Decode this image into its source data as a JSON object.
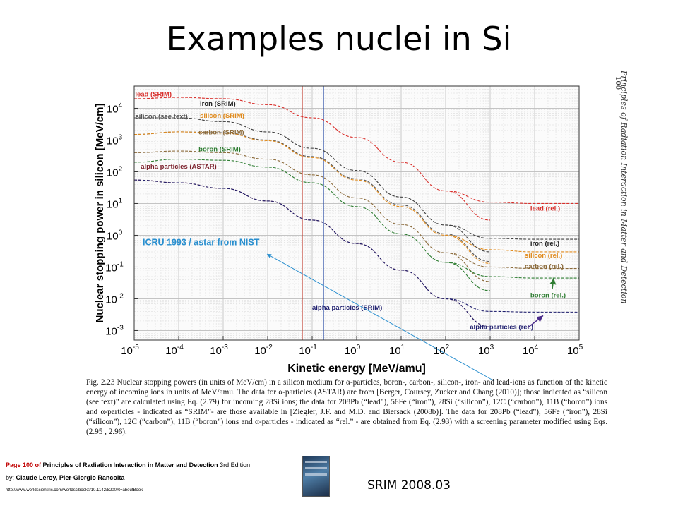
{
  "slide": {
    "title": "Examples nuclei in Si",
    "version": "SRIM 2008.03",
    "page_number": "100",
    "running_head": "Principles of Radiation Interaction in Matter and Detection"
  },
  "caption": "Fig. 2.23   Nuclear stopping powers (in units of MeV/cm) in a silicon medium for α-particles, boron-, carbon-, silicon-, iron- and lead-ions as function of the kinetic energy of incoming ions in units of MeV/amu. The data for α-particles (ASTAR) are from [Berger, Coursey, Zucker and Chang (2010)]; those indicated as “silicon (see text)” are calculated using Eq. (2.79) for incoming 28Si ions; the data for 208Pb (“lead”), 56Fe (“iron”), 28Si (“silicon”), 12C (“carbon”), 11B (“boron”) ions and α-particles - indicated as “SRIM”- are those available in [Ziegler, J.F. and M.D. and Biersack (2008b)]. The data for 208Pb (“lead”), 56Fe (“iron”), 28Si (“silicon”), 12C (“carbon”), 11B (“boron”) ions and α-particles - indicated as “rel.” - are obtained from Eq. (2.93) with a screening parameter modified using Eqs. (2.95 , 2.96).",
  "reference": {
    "page_label": "Page 100 of",
    "book_title": "Principles of Radiation Interaction in Matter and Detection",
    "edition": "3rd Edition",
    "by_label": "by:",
    "authors": "Claude Leroy, Pier-Giorgio Rancoita",
    "url": "http://www.worldscientific.com/worldscibooks/10.1142/8200#t=aboutBook"
  },
  "chart_data": {
    "type": "line",
    "xlabel": "Kinetic energy  [MeV/amu]",
    "ylabel": "Nuclear stopping power in silicon  [MeV/cm]",
    "xscale": "log",
    "yscale": "log",
    "xlim": [
      1e-05,
      100000
    ],
    "ylim": [
      0.0005,
      50000
    ],
    "x_ticks": [
      {
        "v": 1e-05,
        "b": "10",
        "e": "-5"
      },
      {
        "v": 0.0001,
        "b": "10",
        "e": "-4"
      },
      {
        "v": 0.001,
        "b": "10",
        "e": "-3"
      },
      {
        "v": 0.01,
        "b": "10",
        "e": "-2"
      },
      {
        "v": 0.1,
        "b": "10",
        "e": "-1"
      },
      {
        "v": 1,
        "b": "10",
        "e": "0"
      },
      {
        "v": 10,
        "b": "10",
        "e": "1"
      },
      {
        "v": 100,
        "b": "10",
        "e": "2"
      },
      {
        "v": 1000,
        "b": "10",
        "e": "3"
      },
      {
        "v": 10000,
        "b": "10",
        "e": "4"
      },
      {
        "v": 100000,
        "b": "10",
        "e": "5"
      }
    ],
    "y_ticks": [
      {
        "v": 0.001,
        "b": "10",
        "e": "-3"
      },
      {
        "v": 0.01,
        "b": "10",
        "e": "-2"
      },
      {
        "v": 0.1,
        "b": "10",
        "e": "-1"
      },
      {
        "v": 1,
        "b": "10",
        "e": "0"
      },
      {
        "v": 10,
        "b": "10",
        "e": "1"
      },
      {
        "v": 100,
        "b": "10",
        "e": "2"
      },
      {
        "v": 1000,
        "b": "10",
        "e": "3"
      },
      {
        "v": 10000,
        "b": "10",
        "e": "4"
      }
    ],
    "grid": true,
    "vertical_lines": [
      {
        "x": 0.06,
        "color": "#c0392b"
      },
      {
        "x": 0.18,
        "color": "#2c4fa8"
      }
    ],
    "series": [
      {
        "name": "lead (SRIM)",
        "color": "#d9302c",
        "x": [
          1e-05,
          0.0001,
          0.001,
          0.01,
          0.1,
          1,
          10,
          100,
          1000
        ],
        "y": [
          20000,
          22000,
          20000,
          13000,
          5000,
          1200,
          200,
          25,
          3
        ]
      },
      {
        "name": "lead (rel.)",
        "color": "#d9302c",
        "x": [
          100,
          1000,
          10000,
          100000
        ],
        "y": [
          25,
          11,
          10,
          10
        ]
      },
      {
        "name": "iron (SRIM)",
        "color": "#404040",
        "x": [
          1e-05,
          0.0001,
          0.001,
          0.01,
          0.1,
          1,
          10,
          100,
          1000
        ],
        "y": [
          5000,
          5000,
          3800,
          1800,
          550,
          110,
          16,
          2.1,
          0.3
        ]
      },
      {
        "name": "iron (rel.)",
        "color": "#404040",
        "x": [
          100,
          1000,
          10000,
          100000
        ],
        "y": [
          2.1,
          0.8,
          0.75,
          0.75
        ]
      },
      {
        "name": "silicon (see text)",
        "color": "#555555",
        "x": [
          1e-05,
          0.0001,
          0.001,
          0.01,
          0.1,
          1,
          10,
          100,
          1000
        ],
        "y": [
          1500,
          1800,
          1700,
          1000,
          300,
          60,
          9,
          1.1,
          0.15
        ]
      },
      {
        "name": "silicon (SRIM)",
        "color": "#e08a1c",
        "x": [
          1e-05,
          0.0001,
          0.001,
          0.01,
          0.1,
          1,
          10,
          100,
          1000
        ],
        "y": [
          1500,
          1800,
          1650,
          950,
          280,
          55,
          8,
          1.0,
          0.13
        ]
      },
      {
        "name": "silicon (rel.)",
        "color": "#e08a1c",
        "x": [
          100,
          1000,
          10000,
          100000
        ],
        "y": [
          1.0,
          0.35,
          0.3,
          0.3
        ]
      },
      {
        "name": "carbon (SRIM)",
        "color": "#8b6a3a",
        "x": [
          1e-05,
          0.0001,
          0.001,
          0.01,
          0.1,
          1,
          10,
          100,
          1000
        ],
        "y": [
          400,
          450,
          400,
          250,
          80,
          15,
          2.2,
          0.28,
          0.035
        ]
      },
      {
        "name": "carbon (rel.)",
        "color": "#8b6a3a",
        "x": [
          100,
          1000,
          10000,
          100000
        ],
        "y": [
          0.28,
          0.1,
          0.09,
          0.09
        ]
      },
      {
        "name": "boron (SRIM)",
        "color": "#2e7d32",
        "x": [
          1e-05,
          0.0001,
          0.001,
          0.01,
          0.1,
          1,
          10,
          100,
          1000
        ],
        "y": [
          200,
          250,
          230,
          140,
          45,
          8,
          1.1,
          0.14,
          0.018
        ]
      },
      {
        "name": "boron (rel.)",
        "color": "#2e7d32",
        "x": [
          100,
          1000,
          10000,
          100000
        ],
        "y": [
          0.14,
          0.05,
          0.045,
          0.045
        ]
      },
      {
        "name": "alpha particles (ASTAR)",
        "color": "#7a1f2a",
        "x": [
          1e-05,
          0.0001,
          0.001,
          0.01,
          0.1,
          1,
          10,
          100,
          1000
        ],
        "y": [
          55,
          45,
          30,
          12,
          3,
          0.55,
          0.08,
          0.01,
          0.0013
        ]
      },
      {
        "name": "alpha particles (SRIM)",
        "color": "#1f1f6e",
        "x": [
          1e-05,
          0.0001,
          0.001,
          0.01,
          0.1,
          1,
          10,
          100,
          1000
        ],
        "y": [
          55,
          45,
          30,
          12,
          3,
          0.55,
          0.08,
          0.01,
          0.0013
        ]
      },
      {
        "name": "alpha particles (rel.)",
        "color": "#1f1f6e",
        "x": [
          100,
          1000,
          10000,
          100000
        ],
        "y": [
          0.01,
          0.004,
          0.0038,
          0.0038
        ]
      }
    ],
    "labels": [
      {
        "text": "lead (SRIM)",
        "x": 1.05e-05,
        "y": 24000,
        "color": "#d9302c"
      },
      {
        "text": "iron (SRIM)",
        "x": 0.0003,
        "y": 12000,
        "color": "#222222"
      },
      {
        "text": "silicon (see text)",
        "x": 1.05e-05,
        "y": 4700,
        "color": "#555555"
      },
      {
        "text": "silicon (SRIM)",
        "x": 0.0003,
        "y": 5000,
        "color": "#e08a1c"
      },
      {
        "text": "carbon (SRIM)",
        "x": 0.00028,
        "y": 1500,
        "color": "#8b6a3a"
      },
      {
        "text": "boron (SRIM)",
        "x": 0.00028,
        "y": 440,
        "color": "#2e7d32"
      },
      {
        "text": "alpha particles (ASTAR)",
        "x": 1.4e-05,
        "y": 125,
        "color": "#7a1f2a"
      },
      {
        "text": "lead (rel.)",
        "x": 8000,
        "y": 6,
        "color": "#d9302c"
      },
      {
        "text": "iron (rel.)",
        "x": 8000,
        "y": 0.47,
        "color": "#222222"
      },
      {
        "text": "silicon (rel.)",
        "x": 6000,
        "y": 0.2,
        "color": "#e08a1c"
      },
      {
        "text": "carbon (rel.)",
        "x": 6000,
        "y": 0.09,
        "color": "#8b6a3a"
      },
      {
        "text": "boron (rel.)",
        "x": 8000,
        "y": 0.011,
        "color": "#2e7d32"
      },
      {
        "text": "alpha particles (SRIM)",
        "x": 0.1,
        "y": 0.0045,
        "color": "#1f1f6e"
      },
      {
        "text": "alpha particles (rel.)",
        "x": 350,
        "y": 0.0011,
        "color": "#1f1f6e"
      }
    ],
    "annotation": {
      "text": "ICRU 1993 / astar from NIST",
      "color": "#2a8fcf",
      "x": 1e-05,
      "y": 1.0
    }
  }
}
